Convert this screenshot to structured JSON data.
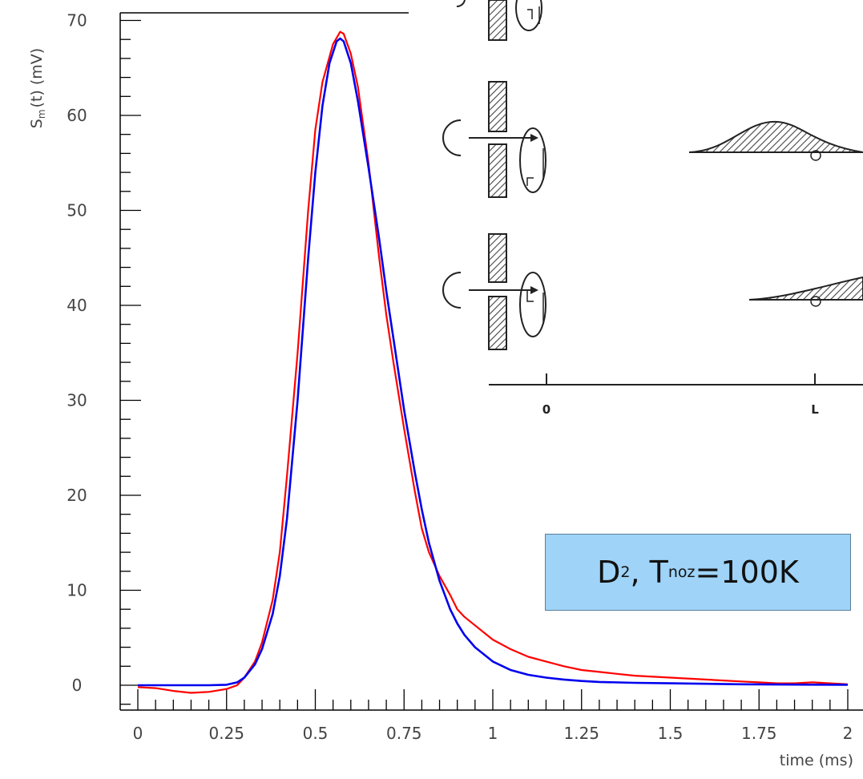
{
  "chart_data": {
    "type": "line",
    "xlabel": "time (ms)",
    "ylabel_main": "S",
    "ylabel_sub": "m",
    "ylabel_rest": "(t)  (mV)",
    "xlim": [
      0,
      2
    ],
    "ylim": [
      -2,
      70
    ],
    "x_ticks": [
      "0",
      "0.25",
      "0.5",
      "0.75",
      "1",
      "1.25",
      "1.5",
      "1.75",
      "2"
    ],
    "y_ticks": [
      "0",
      "10",
      "20",
      "30",
      "40",
      "50",
      "60",
      "70"
    ],
    "grid": false,
    "series": [
      {
        "color": "#ff0000",
        "style": "measured",
        "x": [
          0,
          0.05,
          0.1,
          0.15,
          0.2,
          0.25,
          0.28,
          0.3,
          0.33,
          0.35,
          0.38,
          0.4,
          0.42,
          0.45,
          0.48,
          0.5,
          0.52,
          0.55,
          0.57,
          0.58,
          0.6,
          0.62,
          0.65,
          0.68,
          0.7,
          0.72,
          0.75,
          0.78,
          0.8,
          0.82,
          0.85,
          0.88,
          0.9,
          0.92,
          0.95,
          0.98,
          1.0,
          1.05,
          1.1,
          1.15,
          1.2,
          1.25,
          1.3,
          1.35,
          1.4,
          1.5,
          1.6,
          1.7,
          1.75,
          1.8,
          1.85,
          1.9,
          1.95,
          2.0
        ],
        "y": [
          -0.2,
          -0.3,
          -0.6,
          -0.8,
          -0.7,
          -0.4,
          0.0,
          0.8,
          2.5,
          4.5,
          9.0,
          14.0,
          22.0,
          35.0,
          50.0,
          58.5,
          63.5,
          67.5,
          68.8,
          68.6,
          66.5,
          63.0,
          55.0,
          45.0,
          39.0,
          34.0,
          27.0,
          20.5,
          16.5,
          14.0,
          11.5,
          9.5,
          8.0,
          7.2,
          6.3,
          5.4,
          4.8,
          3.8,
          3.0,
          2.5,
          2.0,
          1.6,
          1.4,
          1.2,
          1.0,
          0.8,
          0.6,
          0.4,
          0.3,
          0.2,
          0.2,
          0.3,
          0.2,
          0.1
        ]
      },
      {
        "color": "#0000ee",
        "style": "fit",
        "x": [
          0,
          0.1,
          0.2,
          0.25,
          0.28,
          0.3,
          0.33,
          0.35,
          0.38,
          0.4,
          0.42,
          0.45,
          0.48,
          0.5,
          0.52,
          0.54,
          0.56,
          0.57,
          0.58,
          0.6,
          0.62,
          0.65,
          0.68,
          0.7,
          0.72,
          0.75,
          0.78,
          0.8,
          0.82,
          0.85,
          0.88,
          0.9,
          0.92,
          0.95,
          1.0,
          1.05,
          1.1,
          1.15,
          1.2,
          1.25,
          1.3,
          1.4,
          1.5,
          1.6,
          1.7,
          1.8,
          1.9,
          2.0
        ],
        "y": [
          0,
          0,
          0,
          0.05,
          0.3,
          0.8,
          2.2,
          3.8,
          7.5,
          11.5,
          17.5,
          30.0,
          45.0,
          54.0,
          61.0,
          65.5,
          67.8,
          68.1,
          67.8,
          65.5,
          61.5,
          54.5,
          47.0,
          41.5,
          36.5,
          29.0,
          22.5,
          18.5,
          15.0,
          11.0,
          8.0,
          6.5,
          5.3,
          4.0,
          2.5,
          1.6,
          1.1,
          0.8,
          0.6,
          0.45,
          0.35,
          0.25,
          0.2,
          0.15,
          0.1,
          0.08,
          0.06,
          0.05
        ]
      }
    ],
    "annotation": {
      "d": "D",
      "d_sub": "2",
      "sep": ", T",
      "t_sub": "noz",
      "rest": "=100K"
    },
    "inset": {
      "tick_labels": [
        "0",
        "L"
      ]
    }
  }
}
